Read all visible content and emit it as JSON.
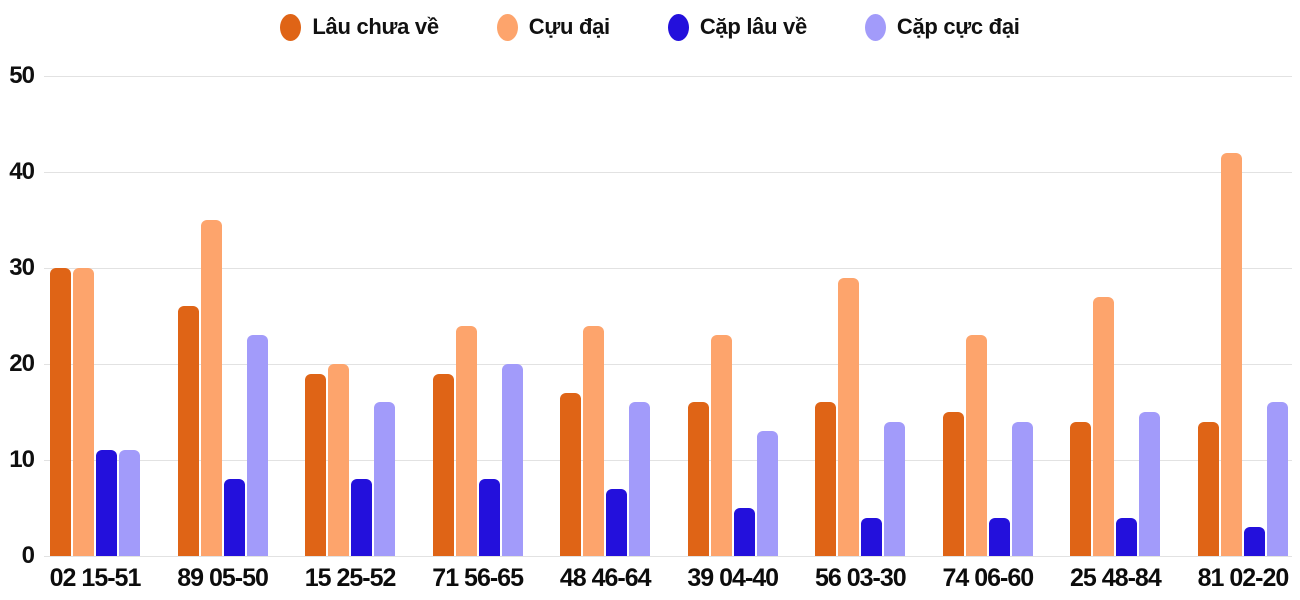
{
  "chart_data": {
    "type": "bar",
    "title": "",
    "categories": [
      "02 15-51",
      "89 05-50",
      "15 25-52",
      "71 56-65",
      "48 46-64",
      "39 04-40",
      "56 03-30",
      "74 06-60",
      "25 48-84",
      "81 02-20"
    ],
    "series": [
      {
        "name": "Lâu chưa về",
        "color": "#df6416",
        "values": [
          30,
          26,
          19,
          19,
          17,
          16,
          16,
          15,
          14,
          14
        ]
      },
      {
        "name": "Cựu đại",
        "color": "#fda46c",
        "values": [
          30,
          35,
          20,
          24,
          24,
          23,
          29,
          23,
          27,
          42
        ]
      },
      {
        "name": "Cặp lâu về",
        "color": "#2310dc",
        "values": [
          11,
          8,
          8,
          8,
          7,
          5,
          4,
          4,
          4,
          3
        ]
      },
      {
        "name": "Cặp cực đại",
        "color": "#a29bfa",
        "values": [
          11,
          23,
          16,
          20,
          16,
          13,
          14,
          14,
          15,
          16
        ]
      }
    ],
    "ylim": [
      0,
      50
    ],
    "yticks": [
      0,
      10,
      20,
      30,
      40,
      50
    ],
    "xlabel": "",
    "ylabel": "",
    "grid": "horizontal",
    "legend_position": "top"
  },
  "colors": {
    "background": "#ffffff",
    "grid": "#e2e2e2",
    "text": "#0f0f0f"
  }
}
